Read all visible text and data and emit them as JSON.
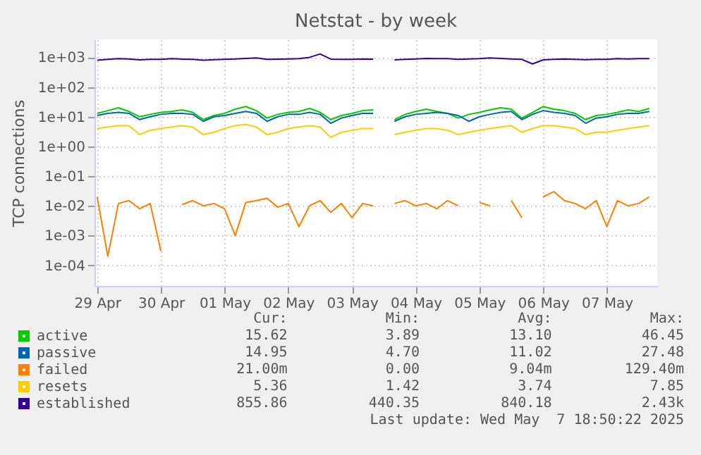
{
  "chart_data": {
    "type": "line",
    "title": "Netstat - by week",
    "ylabel": "TCP connections",
    "log": "y",
    "grid": true,
    "legend": "bottom",
    "xlim": [
      "2025-04-28T23:00",
      "2025-05-07T19:00"
    ],
    "xticks": [
      {
        "value": "2025-04-29",
        "label": "29 Apr"
      },
      {
        "value": "2025-04-30",
        "label": "30 Apr"
      },
      {
        "value": "2025-05-01",
        "label": "01 May"
      },
      {
        "value": "2025-05-02",
        "label": "02 May"
      },
      {
        "value": "2025-05-03",
        "label": "03 May"
      },
      {
        "value": "2025-05-04",
        "label": "04 May"
      },
      {
        "value": "2025-05-05",
        "label": "05 May"
      },
      {
        "value": "2025-05-06",
        "label": "06 May"
      },
      {
        "value": "2025-05-07",
        "label": "07 May"
      }
    ],
    "ylim": [
      2e-05,
      4000
    ],
    "yticks": [
      {
        "value": 0.0001,
        "label": "1e-04"
      },
      {
        "value": 0.001,
        "label": "1e-03"
      },
      {
        "value": 0.01,
        "label": "1e-02"
      },
      {
        "value": 0.1,
        "label": "1e-01"
      },
      {
        "value": 1,
        "label": "1e+00"
      },
      {
        "value": 10,
        "label": "1e+01"
      },
      {
        "value": 100,
        "label": "1e+02"
      },
      {
        "value": 1000,
        "label": "1e+03"
      }
    ],
    "x": [
      "2025-04-29T00:00",
      "2025-04-29T04:00",
      "2025-04-29T08:00",
      "2025-04-29T12:00",
      "2025-04-29T16:00",
      "2025-04-29T20:00",
      "2025-04-30T00:00",
      "2025-04-30T04:00",
      "2025-04-30T08:00",
      "2025-04-30T12:00",
      "2025-04-30T16:00",
      "2025-04-30T20:00",
      "2025-05-01T00:00",
      "2025-05-01T04:00",
      "2025-05-01T08:00",
      "2025-05-01T12:00",
      "2025-05-01T16:00",
      "2025-05-01T20:00",
      "2025-05-02T00:00",
      "2025-05-02T04:00",
      "2025-05-02T08:00",
      "2025-05-02T12:00",
      "2025-05-02T16:00",
      "2025-05-02T20:00",
      "2025-05-03T00:00",
      "2025-05-03T04:00",
      "2025-05-03T08:00",
      "2025-05-03T12:00",
      "2025-05-03T16:00",
      "2025-05-03T20:00",
      "2025-05-04T00:00",
      "2025-05-04T04:00",
      "2025-05-04T08:00",
      "2025-05-04T12:00",
      "2025-05-04T16:00",
      "2025-05-04T20:00",
      "2025-05-05T00:00",
      "2025-05-05T04:00",
      "2025-05-05T08:00",
      "2025-05-05T12:00",
      "2025-05-05T16:00",
      "2025-05-05T20:00",
      "2025-05-06T00:00",
      "2025-05-06T04:00",
      "2025-05-06T08:00",
      "2025-05-06T12:00",
      "2025-05-06T16:00",
      "2025-05-06T20:00",
      "2025-05-07T00:00",
      "2025-05-07T04:00",
      "2025-05-07T08:00",
      "2025-05-07T12:00",
      "2025-05-07T16:00"
    ],
    "series": [
      {
        "name": "active",
        "color": "#00cc00",
        "values": [
          13,
          16,
          20,
          15,
          10,
          12,
          14,
          15,
          17,
          14,
          8,
          11,
          13,
          18,
          22,
          16,
          9,
          12,
          14,
          15,
          19,
          14,
          8,
          11,
          13,
          16,
          17,
          null,
          8,
          12,
          15,
          18,
          15,
          13,
          9,
          12,
          14,
          17,
          20,
          18,
          9,
          14,
          22,
          18,
          16,
          13,
          8,
          11,
          12,
          14,
          17,
          15,
          19
        ]
      },
      {
        "name": "passive",
        "color": "#0066b3",
        "values": [
          11,
          13,
          14,
          13,
          8,
          10,
          12,
          13,
          13,
          12,
          7,
          10,
          11,
          13,
          15,
          13,
          7,
          10,
          12,
          12,
          14,
          12,
          6,
          9,
          11,
          13,
          13,
          null,
          7,
          10,
          12,
          13,
          14,
          13,
          11,
          7,
          10,
          12,
          14,
          15,
          8,
          12,
          16,
          14,
          13,
          11,
          6,
          9,
          10,
          12,
          13,
          13,
          15
        ]
      },
      {
        "name": "failed",
        "color": "#ff8000",
        "values": [
          0.02,
          0.0002,
          0.012,
          0.015,
          0.008,
          0.012,
          0.0003,
          null,
          0.011,
          0.015,
          0.01,
          0.012,
          0.008,
          0.001,
          0.013,
          0.015,
          0.018,
          0.009,
          0.012,
          0.002,
          0.01,
          0.015,
          0.006,
          0.012,
          0.004,
          0.012,
          0.01,
          null,
          0.012,
          0.015,
          0.01,
          0.012,
          0.008,
          0.015,
          0.01,
          null,
          0.013,
          0.01,
          null,
          0.015,
          0.004,
          null,
          0.02,
          0.03,
          0.015,
          0.012,
          0.008,
          0.015,
          0.002,
          0.015,
          0.01,
          0.012,
          0.02
        ]
      },
      {
        "name": "resets",
        "color": "#ffcc00",
        "values": [
          4,
          4.5,
          5,
          5,
          2.5,
          3.5,
          4,
          4.5,
          5,
          4.5,
          2.5,
          3,
          4,
          5,
          5.5,
          4.5,
          2.5,
          3,
          4,
          4.5,
          5,
          4.5,
          2,
          3,
          3.5,
          4,
          4,
          null,
          2.5,
          3,
          3.5,
          4,
          4,
          3.5,
          2.5,
          3,
          3.5,
          4,
          4.5,
          5,
          3,
          4,
          5,
          5,
          4.5,
          4,
          2.5,
          3,
          3,
          3.5,
          4,
          4.5,
          5
        ]
      },
      {
        "name": "established",
        "color": "#330099",
        "values": [
          800,
          850,
          900,
          880,
          820,
          850,
          860,
          900,
          870,
          850,
          800,
          830,
          850,
          880,
          920,
          950,
          850,
          870,
          880,
          900,
          1000,
          1300,
          870,
          850,
          860,
          880,
          870,
          null,
          820,
          850,
          880,
          920,
          900,
          900,
          850,
          880,
          900,
          950,
          920,
          880,
          850,
          600,
          820,
          860,
          880,
          850,
          830,
          860,
          850,
          900,
          880,
          900,
          900
        ]
      }
    ],
    "annotations": [
      "Cur:",
      "Min:",
      "Avg:",
      "Max:",
      "15.62",
      "3.89",
      "13.10",
      "46.45",
      "14.95",
      "4.70",
      "11.02",
      "27.48",
      "21.00m",
      "0.00",
      "9.04m",
      "129.40m",
      "5.36",
      "1.42",
      "3.74",
      "7.85",
      "855.86",
      "440.35",
      "840.18",
      "2.43k",
      "Last update: Wed May  7 18:50:22 2025"
    ]
  }
}
